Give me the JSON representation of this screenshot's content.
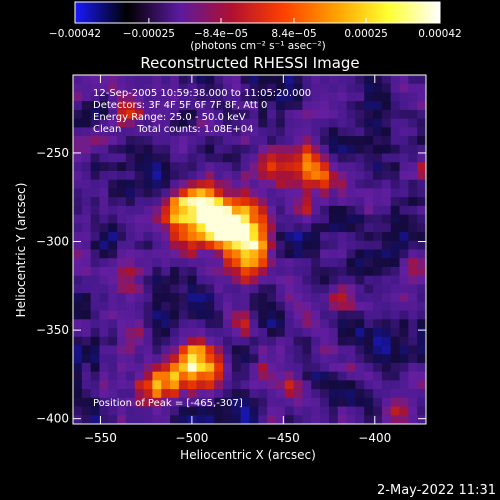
{
  "chart_data": {
    "type": "heatmap",
    "title": "Reconstructed RHESSI Image",
    "xlabel": "Heliocentric X (arcsec)",
    "ylabel": "Heliocentric Y (arcsec)",
    "xlim": [
      -565,
      -372
    ],
    "ylim": [
      -403,
      -206
    ],
    "x_ticks": [
      -550,
      -500,
      -450,
      -400
    ],
    "x_tick_labels": [
      "−550",
      "−500",
      "−450",
      "−400"
    ],
    "y_ticks": [
      -250,
      -300,
      -350,
      -400
    ],
    "y_tick_labels": [
      "−250",
      "−300",
      "−350",
      "−400"
    ],
    "colorbar": {
      "min": -0.00042,
      "max": 0.00042,
      "ticks": [
        -0.00042,
        -0.00025,
        -8.4e-05,
        8.4e-05,
        0.00025,
        0.00042
      ],
      "tick_labels": [
        "−0.00042",
        "−0.00025",
        "−8.4e−05",
        "8.4e−05",
        "0.00025",
        "0.00042"
      ],
      "unit_label": "(photons cm⁻² s⁻¹ asec⁻²)",
      "colors": [
        "#1a1aff",
        "#000000",
        "#5a1aa0",
        "#b01030",
        "#ff4000",
        "#ffa000",
        "#ffff30",
        "#ffffff"
      ]
    },
    "annotations": [
      "12-Sep-2005 10:59:38.000 to 11:05:20.000",
      "Detectors: 3F 4F 5F 6F 7F 8F, Att 0",
      "Energy Range: 25.0 - 50.0 keV",
      "Clean     Total counts: 1.08E+04"
    ],
    "peak_label": "Position of Peak = [-465,-307]",
    "peak": {
      "x": -465,
      "y": -307
    },
    "sources": [
      {
        "x": -470,
        "y": -300,
        "sigma": 10,
        "amp": 1.0
      },
      {
        "x": -487,
        "y": -287,
        "sigma": 13,
        "amp": 0.85
      },
      {
        "x": -505,
        "y": -280,
        "sigma": 8,
        "amp": 0.55
      },
      {
        "x": -455,
        "y": -262,
        "sigma": 9,
        "amp": 0.5
      },
      {
        "x": -435,
        "y": -258,
        "sigma": 8,
        "amp": 0.6
      },
      {
        "x": -500,
        "y": -370,
        "sigma": 10,
        "amp": 0.92
      },
      {
        "x": -520,
        "y": -378,
        "sigma": 7,
        "amp": 0.55
      },
      {
        "x": -540,
        "y": -315,
        "sigma": 7,
        "amp": 0.42
      },
      {
        "x": -420,
        "y": -335,
        "sigma": 7,
        "amp": 0.42
      },
      {
        "x": -390,
        "y": -395,
        "sigma": 7,
        "amp": 0.45
      },
      {
        "x": -535,
        "y": -225,
        "sigma": 7,
        "amp": 0.35
      },
      {
        "x": -445,
        "y": -380,
        "sigma": 6,
        "amp": 0.35
      },
      {
        "x": -380,
        "y": -310,
        "sigma": 6,
        "amp": 0.35
      },
      {
        "x": -475,
        "y": -350,
        "sigma": 6,
        "amp": 0.3
      }
    ]
  },
  "footer": {
    "timestamp": "2-May-2022 11:31"
  }
}
